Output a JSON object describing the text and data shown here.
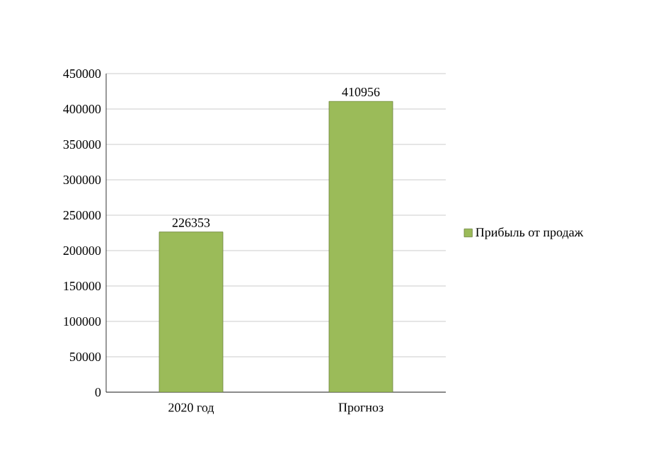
{
  "chart_data": {
    "type": "bar",
    "categories": [
      "2020 год",
      "Прогноз"
    ],
    "series": [
      {
        "name": "Прибыль от продаж",
        "color": "#9bbb59",
        "values": [
          226353,
          410956
        ]
      }
    ],
    "ylim": [
      0,
      450000
    ],
    "yticks": [
      0,
      50000,
      100000,
      150000,
      200000,
      250000,
      300000,
      350000,
      400000,
      450000
    ],
    "grid": "y",
    "legend": "right",
    "data_labels": true
  }
}
